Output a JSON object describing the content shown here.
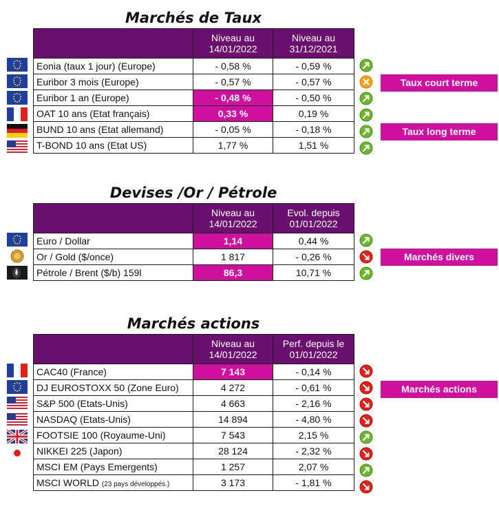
{
  "taux": {
    "title": "Marchés de Taux",
    "headers": [
      "Niveau au 14/01/2022",
      "Niveau au 31/12/2021"
    ],
    "rows": [
      {
        "label": "Eonia (taux 1 jour) (Europe)",
        "v1": "- 0,58 %",
        "v2": "- 0,59 %",
        "flag": "eu-flag-icon",
        "arrow": "up-green-arrow-icon"
      },
      {
        "label": "Euribor 3 mois (Europe)",
        "v1": "- 0,57 %",
        "v2": "- 0,57 %",
        "flag": "eu-flag-icon",
        "arrow": "neutral-orange-icon"
      },
      {
        "label": "Euribor 1 an (Europe)",
        "v1": "- 0,48 %",
        "v2": "- 0,50 %",
        "flag": "eu-flag-icon",
        "arrow": "up-green-arrow-icon"
      },
      {
        "label": "OAT 10 ans (Etat français)",
        "v1": "0,33 %",
        "v2": "0,19 %",
        "flag": "france-flag-icon",
        "arrow": "up-green-arrow-icon"
      },
      {
        "label": "BUND 10 ans (Etat allemand)",
        "v1": "- 0,05 %",
        "v2": "- 0,18 %",
        "flag": "germany-flag-icon",
        "arrow": "up-green-arrow-icon"
      },
      {
        "label": "T-BOND 10 ans (Etat US)",
        "v1": "1,77 %",
        "v2": "1,51 %",
        "flag": "usa-flag-icon",
        "arrow": "up-green-arrow-icon"
      }
    ],
    "tags": [
      "Taux court terme",
      "Taux long terme"
    ]
  },
  "devises": {
    "title": "Devises /Or / Pétrole",
    "headers": [
      "Niveau au 14/01/2022",
      "Evol. depuis 01/01/2022"
    ],
    "rows": [
      {
        "label": "Euro / Dollar",
        "v1": "1,14",
        "v2": "0,44 %",
        "flag": "eu-flag-icon",
        "arrow": "up-green-arrow-icon"
      },
      {
        "label": "Or / Gold ($/once)",
        "v1": "1 817",
        "v2": "- 0,26 %",
        "flag": "gold-coin-icon",
        "arrow": "down-red-arrow-icon"
      },
      {
        "label": "Pétrole / Brent ($/b) 159l",
        "v1": "86,3",
        "v2": "10,71 %",
        "flag": "oil-barrel-icon",
        "arrow": "up-green-arrow-icon"
      }
    ],
    "tag": "Marchés divers"
  },
  "actions": {
    "title": "Marchés actions",
    "headers": [
      "Niveau au 14/01/2022",
      "Perf. depuis le 01/01/2022"
    ],
    "rows": [
      {
        "label": "CAC40 (France)",
        "v1": "7 143",
        "v2": "- 0,14 %",
        "flag": "france-flag-icon",
        "arrow": "down-red-arrow-icon"
      },
      {
        "label": "DJ EUROSTOXX 50 (Zone Euro)",
        "v1": "4 272",
        "v2": "- 0,61 %",
        "flag": "eu-flag-icon",
        "arrow": "down-red-arrow-icon"
      },
      {
        "label": "S&P 500 (Etats-Unis)",
        "v1": "4 663",
        "v2": "- 2,16 %",
        "flag": "usa-flag-icon",
        "arrow": "down-red-arrow-icon"
      },
      {
        "label": "NASDAQ (Etats-Unis)",
        "v1": "14 894",
        "v2": "- 4,80 %",
        "flag": "usa-flag-icon",
        "arrow": "down-red-arrow-icon"
      },
      {
        "label": "FOOTSIE 100 (Royaume-Uni)",
        "v1": "7 543",
        "v2": "2,15 %",
        "flag": "uk-flag-icon",
        "arrow": "up-green-arrow-icon"
      },
      {
        "label": "NIKKEI 225 (Japon)",
        "v1": "28 124",
        "v2": "- 2,32 %",
        "flag": "japan-flag-icon",
        "arrow": "down-red-arrow-icon"
      },
      {
        "label": "MSCI EM (Pays Emergents)",
        "v1": "1 257",
        "v2": "2,07 %",
        "flag": "",
        "arrow": "up-green-arrow-icon"
      },
      {
        "label": "MSCI WORLD",
        "label_small": "(23 pays développés.)",
        "v1": "3 173",
        "v2": "- 1,81 %",
        "flag": "",
        "arrow": "down-red-arrow-icon"
      }
    ],
    "tag": "Marchés actions"
  },
  "colors": {
    "header_bg": "#6b0f6e",
    "highlight": "#cf0f9e",
    "tag_bg": "#cf0f9e",
    "up": "#6cb52d",
    "down": "#e0201b",
    "neutral": "#f2a31b"
  }
}
